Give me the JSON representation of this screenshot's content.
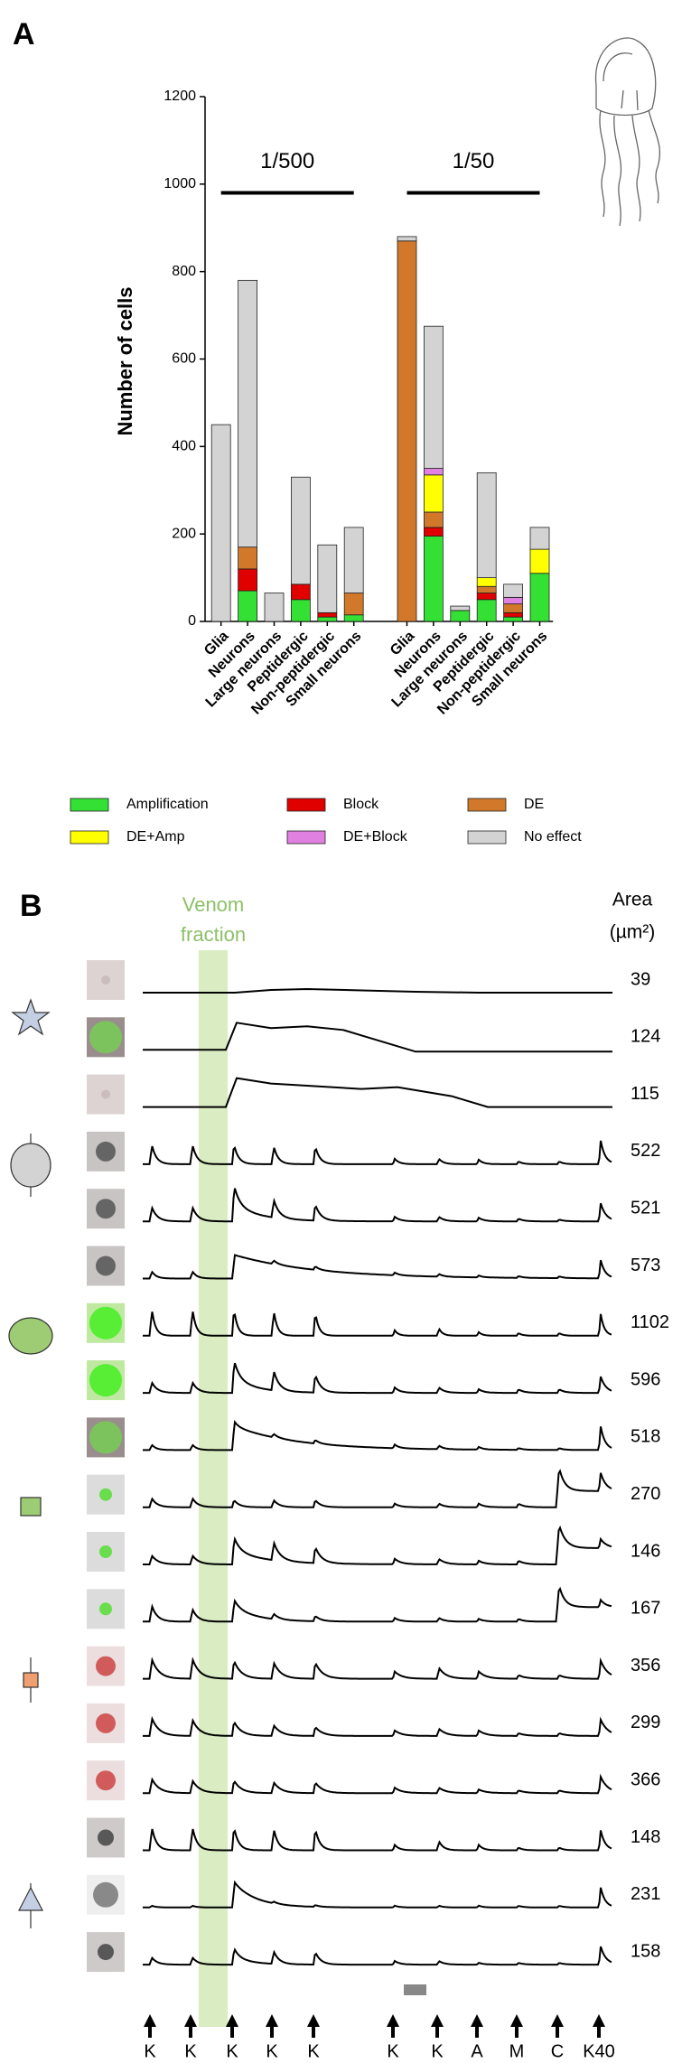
{
  "chart_data": {
    "type": "stacked_bar",
    "panel_label": "A",
    "ylabel": "Number of cells",
    "categories": [
      "Glia",
      "Neurons",
      "Large neurons",
      "Peptidergic",
      "Non-peptidergic",
      "Small neurons",
      null,
      "Glia",
      "Neurons",
      "Large neurons",
      "Peptidergic",
      "Non-peptidergic",
      "Small neurons"
    ],
    "groups": [
      {
        "label": "1/500"
      },
      {
        "label": "1/50"
      }
    ],
    "series": [
      {
        "name": "Amplification",
        "color": "#33e033",
        "values": [
          0,
          70,
          0,
          50,
          10,
          15,
          null,
          0,
          195,
          25,
          50,
          10,
          110
        ]
      },
      {
        "name": "Block",
        "color": "#e00000",
        "values": [
          0,
          50,
          0,
          35,
          10,
          0,
          null,
          0,
          20,
          0,
          15,
          10,
          0
        ]
      },
      {
        "name": "DE",
        "color": "#d2782a",
        "values": [
          0,
          50,
          0,
          0,
          0,
          50,
          null,
          870,
          35,
          0,
          15,
          20,
          0
        ]
      },
      {
        "name": "DE+Amp",
        "color": "#ffff00",
        "values": [
          0,
          0,
          0,
          0,
          0,
          0,
          null,
          0,
          85,
          0,
          20,
          0,
          55
        ]
      },
      {
        "name": "DE+Block",
        "color": "#e080e0",
        "values": [
          0,
          0,
          0,
          0,
          0,
          0,
          null,
          0,
          15,
          0,
          0,
          15,
          0
        ]
      },
      {
        "name": "No effect",
        "color": "#d3d3d3",
        "values": [
          450,
          610,
          65,
          245,
          155,
          150,
          null,
          10,
          325,
          10,
          240,
          30,
          50
        ]
      }
    ],
    "ylim": [
      0,
      1200
    ],
    "yticks": [
      0,
      200,
      400,
      600,
      800,
      1000,
      1200
    ]
  },
  "panel_b": {
    "label": "B",
    "band_label": [
      "Venom",
      "fraction"
    ],
    "area_header": [
      "Area",
      "(µm²)"
    ],
    "areas": [
      39,
      124,
      115,
      522,
      521,
      573,
      1102,
      596,
      518,
      270,
      146,
      167,
      356,
      299,
      366,
      148,
      231,
      158
    ],
    "stimuli": [
      "K",
      "K",
      "K",
      "K",
      "K",
      "K",
      "K",
      "A",
      "M",
      "C",
      "K40"
    ]
  }
}
